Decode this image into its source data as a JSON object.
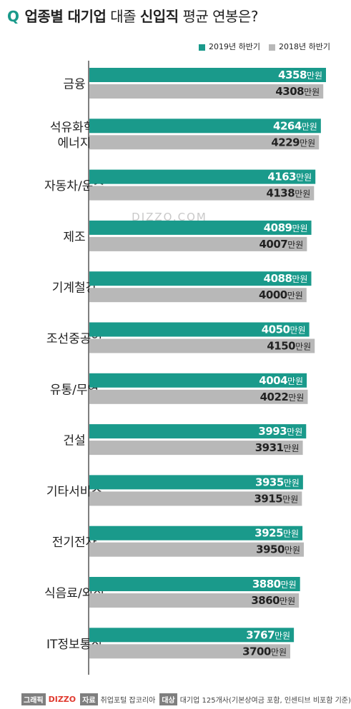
{
  "chart_data": {
    "type": "bar",
    "orientation": "horizontal",
    "title": "Q 업종별 대기업 대졸 신입직 평균 연봉은?",
    "title_parts": {
      "q": "Q",
      "p1": "업종별 대기업",
      "p2": " 대졸 ",
      "p3": "신입직",
      "p4": " 평균 연봉은?"
    },
    "categories": [
      "금융",
      "석유화학/\n에너지",
      "자동차/운수",
      "제조",
      "기계철강",
      "조선중공업",
      "유통/무역",
      "건설",
      "기타서비스",
      "전기전자",
      "식음료/외식",
      "IT정보통신"
    ],
    "series": [
      {
        "name": "2019년 하반기",
        "values": [
          4358,
          4264,
          4163,
          4089,
          4088,
          4050,
          4004,
          3993,
          3935,
          3925,
          3880,
          3767
        ]
      },
      {
        "name": "2018년 하반기",
        "values": [
          4308,
          4229,
          4138,
          4007,
          4000,
          4150,
          4022,
          3931,
          3915,
          3950,
          3860,
          3700
        ]
      }
    ],
    "unit": "만원",
    "legend": "top-right",
    "grid": false,
    "colors": {
      "series_2019": "#1a9a8b",
      "series_2018": "#b8b8b8",
      "label_2019": "#ffffff",
      "label_2018": "#222222",
      "axis": "#555555",
      "title_accent": "#1a9a8b"
    }
  },
  "watermark": "DIZZO.COM",
  "footer": {
    "graphic_label": "그래픽",
    "brand": "DIZZO",
    "source_label": "자료",
    "source_text": "취업포털 잡코리아",
    "target_label": "대상",
    "target_text": "대기업 125개사(기본상여금 포함, 인센티브 비포함 기준)"
  }
}
